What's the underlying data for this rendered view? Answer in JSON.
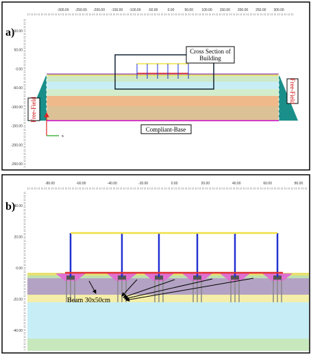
{
  "panel_a": {
    "label": "a)",
    "top_ticks": [
      "-300.00",
      "-250.00",
      "-200.00",
      "-150.00",
      "-100.00",
      "-50.00",
      "0.00",
      "50.00",
      "100.00",
      "150.00",
      "200.00",
      "250.00",
      "300.00"
    ],
    "left_ticks": [
      "100.00",
      "50.00",
      "0.00",
      "-50.00",
      "-100.00",
      "-150.00",
      "-200.00",
      "-250.00"
    ],
    "building_label": "Cross Section of Building",
    "free_field_left": "Free-Field",
    "free_field_right": "Free-Field",
    "base_label": "Compliant-Base",
    "axis_label": "x"
  },
  "panel_b": {
    "label": "b)",
    "top_ticks": [
      "-80.00",
      "-60.00",
      "-40.00",
      "-20.00",
      "0.00",
      "20.00",
      "40.00",
      "60.00",
      "80.00"
    ],
    "left_ticks": [
      "40.00",
      "20.00",
      "0.00",
      "-20.00",
      "-40.00"
    ],
    "beam_label": "Beam 30x50cm"
  }
}
